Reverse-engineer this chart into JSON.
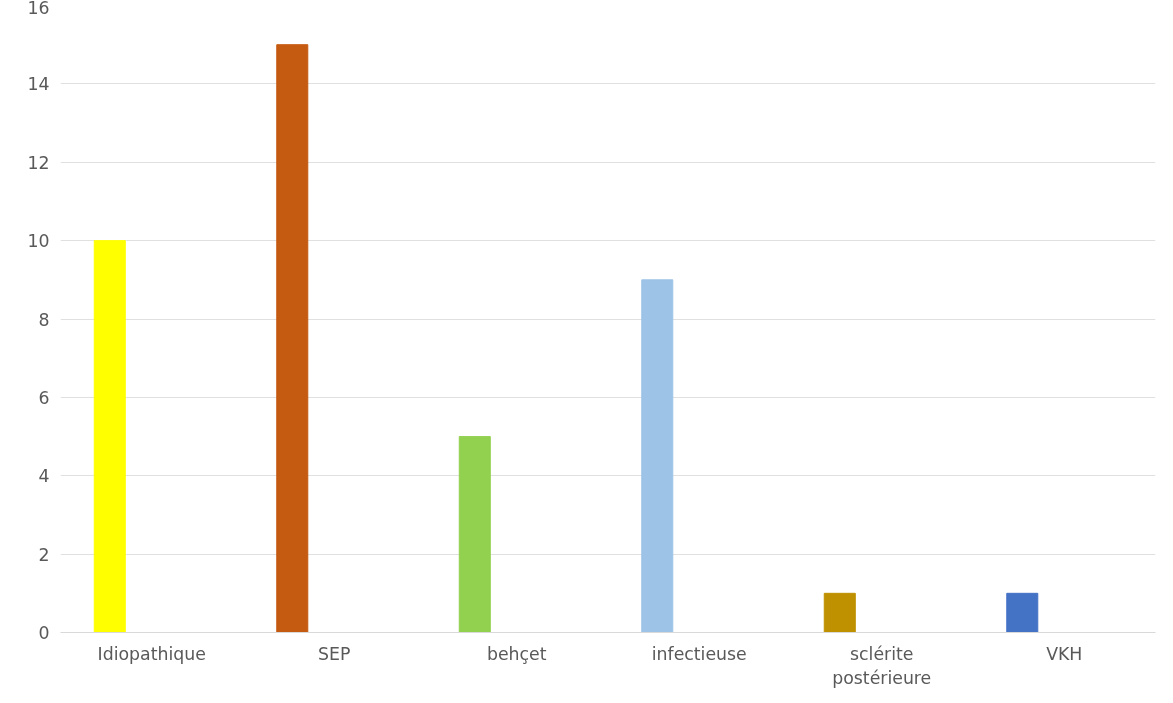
{
  "chart_data": {
    "type": "bar",
    "categories": [
      "Idiopathique",
      "SEP",
      "behçet",
      "infectieuse",
      "sclérite postérieure",
      "VKH"
    ],
    "values": [
      10,
      15,
      5,
      9,
      1,
      1
    ],
    "colors": [
      "#ffff00",
      "#c55a11",
      "#92d050",
      "#9dc3e6",
      "#bf9000",
      "#4472c4"
    ],
    "ylim": [
      0,
      16
    ],
    "yticks": [
      0,
      2,
      4,
      6,
      8,
      10,
      12,
      14,
      16
    ],
    "grid": "y"
  }
}
